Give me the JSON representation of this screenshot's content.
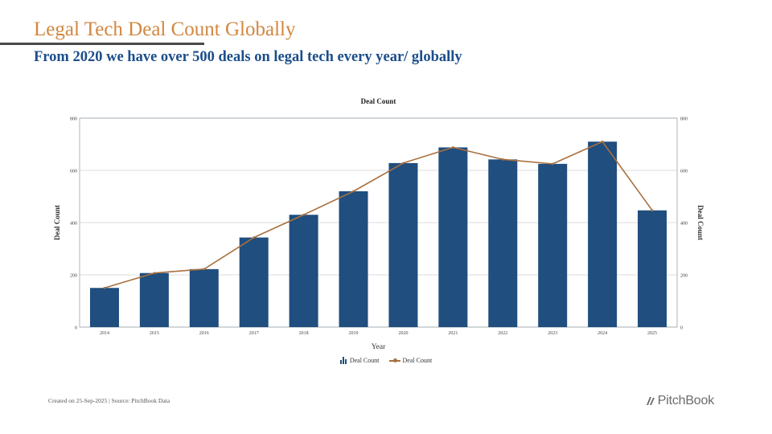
{
  "header": {
    "title": "Legal Tech Deal Count Globally",
    "subtitle": "From 2020 we have over 500 deals on legal tech every year/ globally"
  },
  "colors": {
    "title": "#D2873F",
    "subtitle": "#1B4E8A",
    "bar": "#1F4E7F",
    "line": "#A8703F"
  },
  "chart_data": {
    "type": "bar",
    "title": "Deal Count",
    "xlabel": "Year",
    "ylabel": "Deal Count",
    "ylabel_right": "Deal Count",
    "ylim": [
      0,
      800
    ],
    "yticks": [
      0,
      200,
      400,
      600,
      800
    ],
    "categories": [
      "2014",
      "2015",
      "2016",
      "2017",
      "2018",
      "2019",
      "2020",
      "2021",
      "2022",
      "2023",
      "2024",
      "2025"
    ],
    "series": [
      {
        "name": "Deal Count",
        "type": "bar",
        "values": [
          150,
          207,
          222,
          343,
          430,
          520,
          628,
          688,
          642,
          625,
          710,
          447
        ]
      },
      {
        "name": "Deal Count",
        "type": "line",
        "values": [
          150,
          207,
          222,
          343,
          430,
          520,
          628,
          688,
          642,
          625,
          710,
          447
        ]
      }
    ],
    "legend": [
      "Deal Count",
      "Deal Count"
    ],
    "grid": true
  },
  "footer": {
    "source": "Created on 25-Sep-2025 | Source: PitchBook Data",
    "brand": "PitchBook",
    "brand_icon": "pitchbook-logo-icon"
  }
}
